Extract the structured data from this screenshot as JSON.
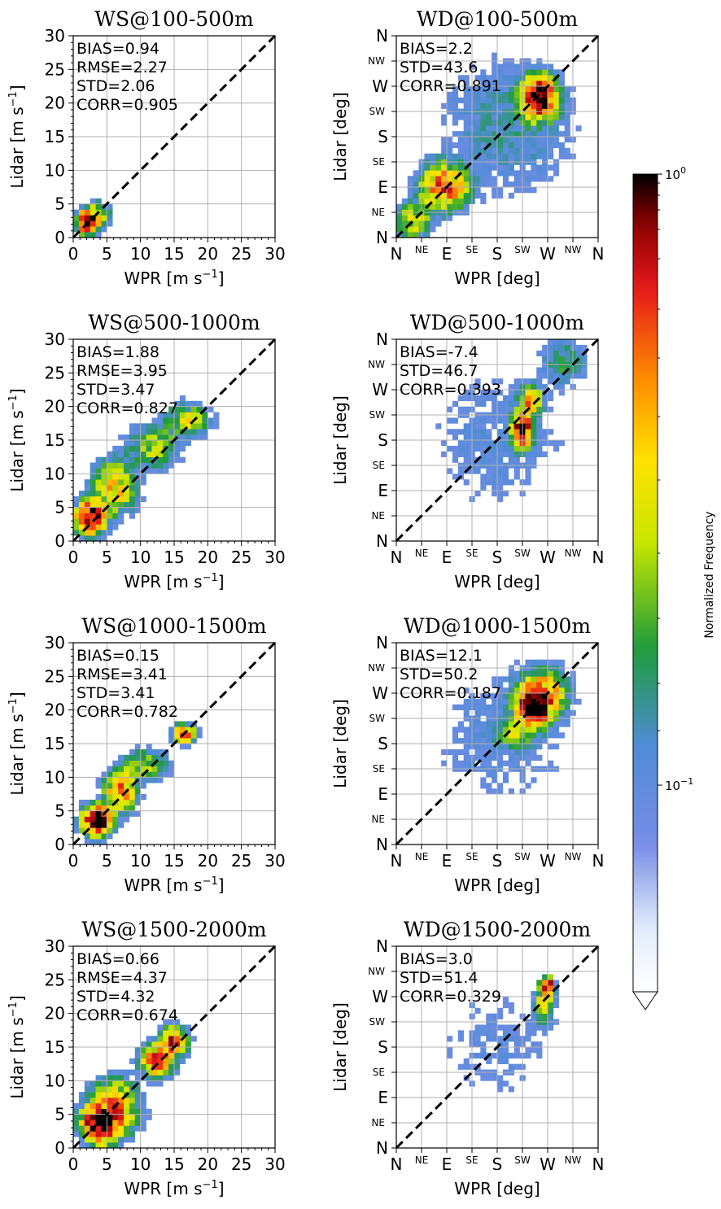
{
  "chart_data": [
    {
      "type": "heatmap",
      "kind": "ws",
      "title": "WS@100-500m",
      "xlabel": "WPR [m s",
      "ylabel": "Lidar [m s",
      "unit_exp": "−1",
      "xlim": [
        0,
        30
      ],
      "ylim": [
        0,
        30
      ],
      "xticks": [
        "0",
        "5",
        "10",
        "15",
        "20",
        "25",
        "30"
      ],
      "yticks": [
        "0",
        "5",
        "10",
        "15",
        "20",
        "25",
        "30"
      ],
      "stats": [
        "BIAS=0.94",
        "RMSE=2.27",
        "STD=2.06",
        "CORR=0.905"
      ],
      "clusters": [
        {
          "x": 2,
          "y": 2.3,
          "sx": 0.9,
          "sy": 1.0,
          "w": 1.0
        },
        {
          "x": 3.5,
          "y": 3.5,
          "sx": 1.2,
          "sy": 1.2,
          "w": 0.25
        }
      ]
    },
    {
      "type": "heatmap",
      "kind": "wd",
      "title": "WD@100-500m",
      "xlabel": "WPR [deg]",
      "ylabel": "Lidar [deg]",
      "xlim": [
        0,
        360
      ],
      "ylim": [
        0,
        360
      ],
      "xticks": [
        "N",
        "NE",
        "E",
        "SE",
        "S",
        "SW",
        "W",
        "NW",
        "N"
      ],
      "yticks": [
        "N",
        "NE",
        "E",
        "SE",
        "S",
        "SW",
        "W",
        "NW",
        "N"
      ],
      "stats": [
        "BIAS=2.2",
        "STD=43.6",
        "CORR=0.891"
      ],
      "clusters": [
        {
          "x": 255,
          "y": 250,
          "sx": 18,
          "sy": 22,
          "w": 1.0
        },
        {
          "x": 85,
          "y": 90,
          "sx": 25,
          "sy": 25,
          "w": 0.55
        },
        {
          "x": 30,
          "y": 30,
          "sx": 20,
          "sy": 20,
          "w": 0.25
        },
        {
          "x": 200,
          "y": 200,
          "sx": 80,
          "sy": 80,
          "w": 0.08
        }
      ]
    },
    {
      "type": "heatmap",
      "kind": "ws",
      "title": "WS@500-1000m",
      "xlabel": "WPR [m s",
      "ylabel": "Lidar [m s",
      "unit_exp": "−1",
      "xlim": [
        0,
        30
      ],
      "ylim": [
        0,
        30
      ],
      "xticks": [
        "0",
        "5",
        "10",
        "15",
        "20",
        "25",
        "30"
      ],
      "yticks": [
        "0",
        "5",
        "10",
        "15",
        "20",
        "25",
        "30"
      ],
      "stats": [
        "BIAS=1.88",
        "RMSE=3.95",
        "STD=3.47",
        "CORR=0.827"
      ],
      "clusters": [
        {
          "x": 2.5,
          "y": 3.5,
          "sx": 1.3,
          "sy": 1.4,
          "w": 1.0
        },
        {
          "x": 6,
          "y": 8,
          "sx": 2.0,
          "sy": 2.5,
          "w": 0.35
        },
        {
          "x": 12,
          "y": 14,
          "sx": 2.5,
          "sy": 2.0,
          "w": 0.2
        },
        {
          "x": 17,
          "y": 18,
          "sx": 2.0,
          "sy": 1.5,
          "w": 0.25
        }
      ]
    },
    {
      "type": "heatmap",
      "kind": "wd",
      "title": "WD@500-1000m",
      "xlabel": "WPR [deg]",
      "ylabel": "Lidar [deg]",
      "xlim": [
        0,
        360
      ],
      "ylim": [
        0,
        360
      ],
      "xticks": [
        "N",
        "NE",
        "E",
        "SE",
        "S",
        "SW",
        "W",
        "NW",
        "N"
      ],
      "yticks": [
        "N",
        "NE",
        "E",
        "SE",
        "S",
        "SW",
        "W",
        "NW",
        "N"
      ],
      "stats": [
        "BIAS=-7.4",
        "STD=46.7",
        "CORR=0.393"
      ],
      "clusters": [
        {
          "x": 225,
          "y": 200,
          "sx": 10,
          "sy": 18,
          "w": 1.0
        },
        {
          "x": 240,
          "y": 250,
          "sx": 12,
          "sy": 15,
          "w": 0.45
        },
        {
          "x": 300,
          "y": 320,
          "sx": 25,
          "sy": 25,
          "w": 0.12
        },
        {
          "x": 180,
          "y": 180,
          "sx": 90,
          "sy": 90,
          "w": 0.05
        }
      ]
    },
    {
      "type": "heatmap",
      "kind": "ws",
      "title": "WS@1000-1500m",
      "xlabel": "WPR [m s",
      "ylabel": "Lidar [m s",
      "unit_exp": "−1",
      "xlim": [
        0,
        30
      ],
      "ylim": [
        0,
        30
      ],
      "xticks": [
        "0",
        "5",
        "10",
        "15",
        "20",
        "25",
        "30"
      ],
      "yticks": [
        "0",
        "5",
        "10",
        "15",
        "20",
        "25",
        "30"
      ],
      "stats": [
        "BIAS=0.15",
        "RMSE=3.41",
        "STD=3.41",
        "CORR=0.782"
      ],
      "clusters": [
        {
          "x": 3.5,
          "y": 3.5,
          "sx": 1.3,
          "sy": 1.3,
          "w": 1.0
        },
        {
          "x": 7,
          "y": 8,
          "sx": 1.5,
          "sy": 2.0,
          "w": 0.45
        },
        {
          "x": 11,
          "y": 12,
          "sx": 2.0,
          "sy": 1.5,
          "w": 0.2
        },
        {
          "x": 16.5,
          "y": 16.5,
          "sx": 1.0,
          "sy": 0.8,
          "w": 0.6
        }
      ]
    },
    {
      "type": "heatmap",
      "kind": "wd",
      "title": "WD@1000-1500m",
      "xlabel": "WPR [deg]",
      "ylabel": "Lidar [deg]",
      "xlim": [
        0,
        360
      ],
      "ylim": [
        0,
        360
      ],
      "xticks": [
        "N",
        "NE",
        "E",
        "SE",
        "S",
        "SW",
        "W",
        "NW",
        "N"
      ],
      "yticks": [
        "N",
        "NE",
        "E",
        "SE",
        "S",
        "SW",
        "W",
        "NW",
        "N"
      ],
      "stats": [
        "BIAS=12.1",
        "STD=50.2",
        "CORR=0.187"
      ],
      "clusters": [
        {
          "x": 245,
          "y": 245,
          "sx": 18,
          "sy": 18,
          "w": 1.0
        },
        {
          "x": 260,
          "y": 270,
          "sx": 25,
          "sy": 25,
          "w": 0.45
        },
        {
          "x": 215,
          "y": 200,
          "sx": 20,
          "sy": 15,
          "w": 0.2
        },
        {
          "x": 190,
          "y": 190,
          "sx": 90,
          "sy": 90,
          "w": 0.05
        }
      ]
    },
    {
      "type": "heatmap",
      "kind": "ws",
      "title": "WS@1500-2000m",
      "xlabel": "WPR [m s",
      "ylabel": "Lidar [m s",
      "unit_exp": "−1",
      "xlim": [
        0,
        30
      ],
      "ylim": [
        0,
        30
      ],
      "xticks": [
        "0",
        "5",
        "10",
        "15",
        "20",
        "25",
        "30"
      ],
      "yticks": [
        "0",
        "5",
        "10",
        "15",
        "20",
        "25",
        "30"
      ],
      "stats": [
        "BIAS=0.66",
        "RMSE=4.37",
        "STD=4.32",
        "CORR=0.674"
      ],
      "clusters": [
        {
          "x": 4,
          "y": 3.5,
          "sx": 1.6,
          "sy": 1.6,
          "w": 1.0
        },
        {
          "x": 6,
          "y": 6,
          "sx": 2.2,
          "sy": 2.5,
          "w": 0.45
        },
        {
          "x": 12.5,
          "y": 13,
          "sx": 1.5,
          "sy": 1.5,
          "w": 0.55
        },
        {
          "x": 15,
          "y": 16,
          "sx": 1.2,
          "sy": 1.2,
          "w": 0.6
        }
      ]
    },
    {
      "type": "heatmap",
      "kind": "wd",
      "title": "WD@1500-2000m",
      "xlabel": "WPR [deg]",
      "ylabel": "Lidar [deg]",
      "xlim": [
        0,
        360
      ],
      "ylim": [
        0,
        360
      ],
      "xticks": [
        "N",
        "NE",
        "E",
        "SE",
        "S",
        "SW",
        "W",
        "NW",
        "N"
      ],
      "yticks": [
        "N",
        "NE",
        "E",
        "SE",
        "S",
        "SW",
        "W",
        "NW",
        "N"
      ],
      "stats": [
        "BIAS=3.0",
        "STD=51.4",
        "CORR=0.329"
      ],
      "clusters": [
        {
          "x": 270,
          "y": 290,
          "sx": 6,
          "sy": 8,
          "w": 1.0
        },
        {
          "x": 265,
          "y": 260,
          "sx": 10,
          "sy": 22,
          "w": 0.3
        },
        {
          "x": 180,
          "y": 180,
          "sx": 80,
          "sy": 80,
          "w": 0.04
        }
      ]
    }
  ],
  "colorbar": {
    "label": "Normalized Frequency",
    "tick_top_base": "10",
    "tick_top_exp": "0",
    "tick_mid_base": "10",
    "tick_mid_exp": "−1",
    "colors": [
      "#ffffff",
      "#e6eefb",
      "#7b8fe6",
      "#4d8ad6",
      "#1e9a3c",
      "#c8e600",
      "#ffe000",
      "#ff8a00",
      "#e31a1c",
      "#8b0000",
      "#000000"
    ]
  }
}
